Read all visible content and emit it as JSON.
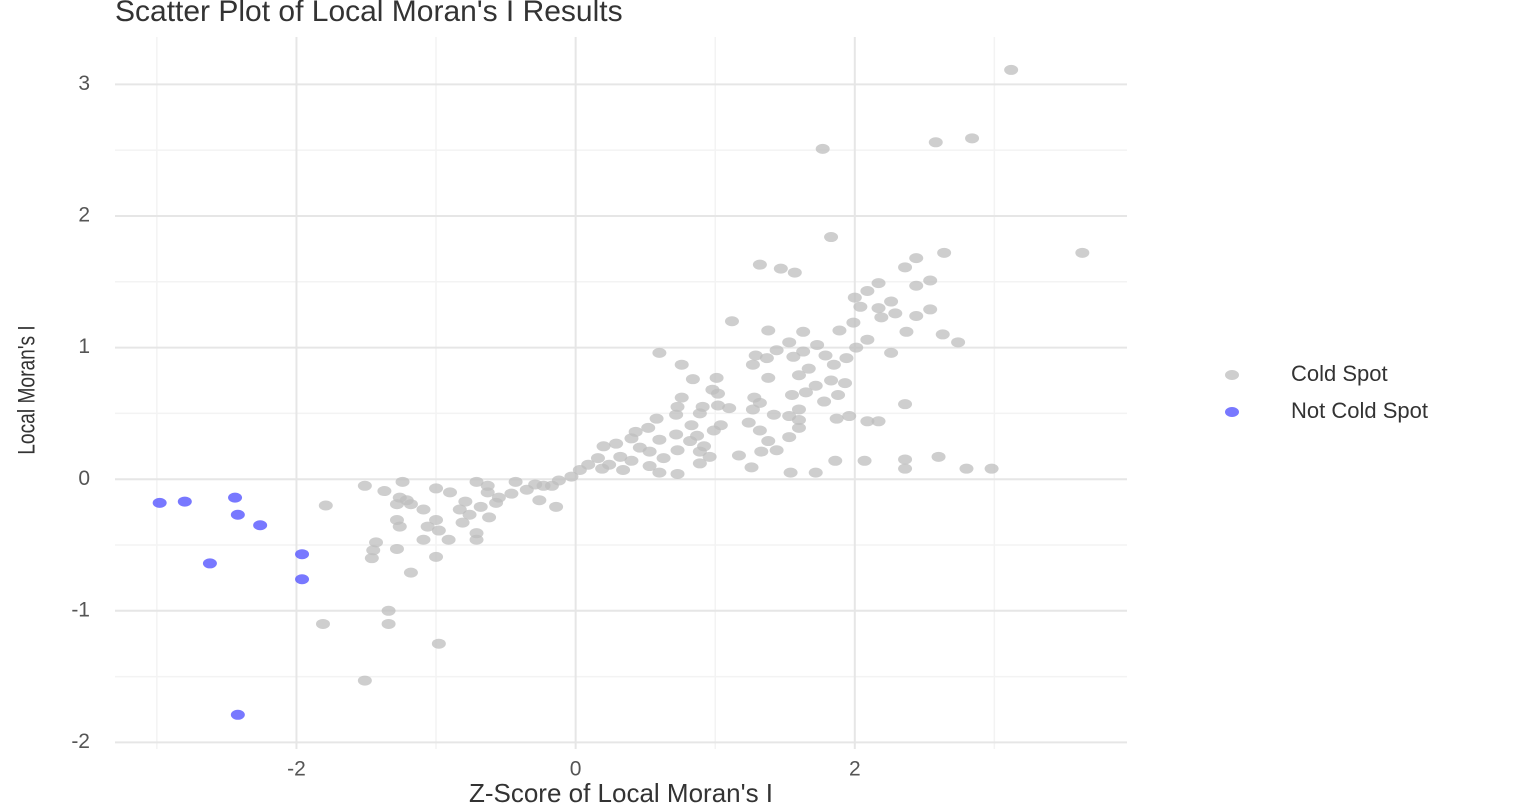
{
  "chart_data": {
    "type": "scatter",
    "title": "Scatter Plot of Local Moran's I Results",
    "x_label": "Z-Score of Local Moran's I",
    "y_label": "Local Moran's I",
    "xlim": [
      -3.3,
      3.95
    ],
    "ylim": [
      -2.05,
      3.36
    ],
    "xticks": [
      -2,
      0,
      2
    ],
    "yticks": [
      -2,
      -1,
      0,
      1,
      2,
      3
    ],
    "xminor": [
      -3,
      -1,
      1,
      3
    ],
    "yminor": [
      -1.5,
      -0.5,
      0.5,
      1.5,
      2.5
    ],
    "grid": true,
    "legend_position": "right",
    "series": [
      {
        "name": "Cold Spot",
        "color": "#bdbdbd",
        "x": [
          3.12,
          1.77,
          2.58,
          2.84,
          3.63,
          1.83,
          2.64,
          2.44,
          1.32,
          1.47,
          1.57,
          2.36,
          2.54,
          2.44,
          2.17,
          2.09,
          2.0,
          2.26,
          2.04,
          2.17,
          2.29,
          2.54,
          2.44,
          1.12,
          1.99,
          2.19,
          1.38,
          1.63,
          1.89,
          2.37,
          2.63,
          2.74,
          2.09,
          1.53,
          1.73,
          2.01,
          1.44,
          1.63,
          1.79,
          2.26,
          0.6,
          1.29,
          1.37,
          1.56,
          1.94,
          1.27,
          0.76,
          1.67,
          1.85,
          1.01,
          0.84,
          1.38,
          1.6,
          1.83,
          1.93,
          1.72,
          0.98,
          1.02,
          1.55,
          1.65,
          1.88,
          0.76,
          1.28,
          1.32,
          1.78,
          2.36,
          0.73,
          0.91,
          1.02,
          1.1,
          1.27,
          1.6,
          0.72,
          0.89,
          1.42,
          1.53,
          1.96,
          1.87,
          0.58,
          2.09,
          2.17,
          1.24,
          1.6,
          0.83,
          1.04,
          0.52,
          0.99,
          1.32,
          1.6,
          1.53,
          0.43,
          0.72,
          0.87,
          1.38,
          0.4,
          0.29,
          0.6,
          0.82,
          0.92,
          0.2,
          0.46,
          0.89,
          1.33,
          1.44,
          0.73,
          0.53,
          0.96,
          1.17,
          0.32,
          0.16,
          0.4,
          0.63,
          1.86,
          2.07,
          2.36,
          2.6,
          0.89,
          0.09,
          0.24,
          0.53,
          1.26,
          0.19,
          0.34,
          0.6,
          0.73,
          1.54,
          1.72,
          2.36,
          2.8,
          2.98,
          0.03,
          -0.03,
          -0.12,
          -0.17,
          -0.23,
          -0.29,
          -0.35,
          -0.26,
          -0.14,
          -0.43,
          -0.46,
          -0.55,
          -0.63,
          -0.71,
          -0.63,
          -0.57,
          -0.68,
          -0.79,
          -0.83,
          -0.76,
          -0.62,
          -0.71,
          -0.71,
          -0.81,
          -0.9,
          -1.0,
          -1.09,
          -1.0,
          -1.06,
          -0.98,
          -1.09,
          -0.91,
          -1.0,
          -1.24,
          -1.26,
          -1.21,
          -1.28,
          -1.18,
          -1.37,
          -1.28,
          -1.26,
          -1.28,
          -1.18,
          -1.43,
          -1.45,
          -1.46,
          -1.51,
          -1.79,
          -1.34,
          -1.34,
          -1.81,
          -0.98,
          -1.51
        ],
        "values": [
          3.11,
          2.51,
          2.56,
          2.59,
          1.72,
          1.84,
          1.72,
          1.68,
          1.63,
          1.6,
          1.57,
          1.61,
          1.51,
          1.47,
          1.49,
          1.43,
          1.38,
          1.35,
          1.31,
          1.3,
          1.26,
          1.29,
          1.24,
          1.2,
          1.19,
          1.23,
          1.13,
          1.12,
          1.13,
          1.12,
          1.1,
          1.04,
          1.06,
          1.04,
          1.02,
          1.0,
          0.98,
          0.97,
          0.94,
          0.96,
          0.96,
          0.94,
          0.92,
          0.93,
          0.92,
          0.87,
          0.87,
          0.84,
          0.87,
          0.77,
          0.76,
          0.77,
          0.79,
          0.75,
          0.73,
          0.71,
          0.68,
          0.65,
          0.64,
          0.66,
          0.64,
          0.62,
          0.62,
          0.58,
          0.59,
          0.57,
          0.55,
          0.55,
          0.56,
          0.54,
          0.53,
          0.53,
          0.49,
          0.5,
          0.49,
          0.48,
          0.48,
          0.46,
          0.46,
          0.44,
          0.44,
          0.43,
          0.45,
          0.41,
          0.41,
          0.39,
          0.37,
          0.37,
          0.39,
          0.32,
          0.36,
          0.34,
          0.33,
          0.29,
          0.31,
          0.27,
          0.3,
          0.29,
          0.25,
          0.25,
          0.24,
          0.21,
          0.21,
          0.22,
          0.22,
          0.21,
          0.17,
          0.18,
          0.17,
          0.16,
          0.14,
          0.16,
          0.14,
          0.14,
          0.15,
          0.17,
          0.12,
          0.11,
          0.11,
          0.1,
          0.09,
          0.08,
          0.07,
          0.05,
          0.04,
          0.05,
          0.05,
          0.08,
          0.08,
          0.08,
          0.07,
          0.02,
          -0.01,
          -0.05,
          -0.05,
          -0.04,
          -0.08,
          -0.16,
          -0.21,
          -0.02,
          -0.11,
          -0.14,
          -0.1,
          -0.02,
          -0.05,
          -0.18,
          -0.21,
          -0.17,
          -0.23,
          -0.27,
          -0.29,
          -0.41,
          -0.46,
          -0.33,
          -0.1,
          -0.07,
          -0.23,
          -0.31,
          -0.36,
          -0.39,
          -0.46,
          -0.46,
          -0.59,
          -0.02,
          -0.14,
          -0.16,
          -0.19,
          -0.19,
          -0.09,
          -0.31,
          -0.36,
          -0.53,
          -0.71,
          -0.48,
          -0.54,
          -0.6,
          -0.05,
          -0.2,
          -1.0,
          -1.1,
          -1.1,
          -1.25,
          -1.53
        ]
      },
      {
        "name": "Not Cold Spot",
        "color": "#4b4bff",
        "x": [
          -2.98,
          -2.8,
          -2.44,
          -2.42,
          -2.26,
          -2.62,
          -1.96,
          -1.96,
          -2.42
        ],
        "values": [
          -0.18,
          -0.17,
          -0.14,
          -0.27,
          -0.35,
          -0.64,
          -0.57,
          -0.76,
          -1.79
        ]
      }
    ]
  }
}
